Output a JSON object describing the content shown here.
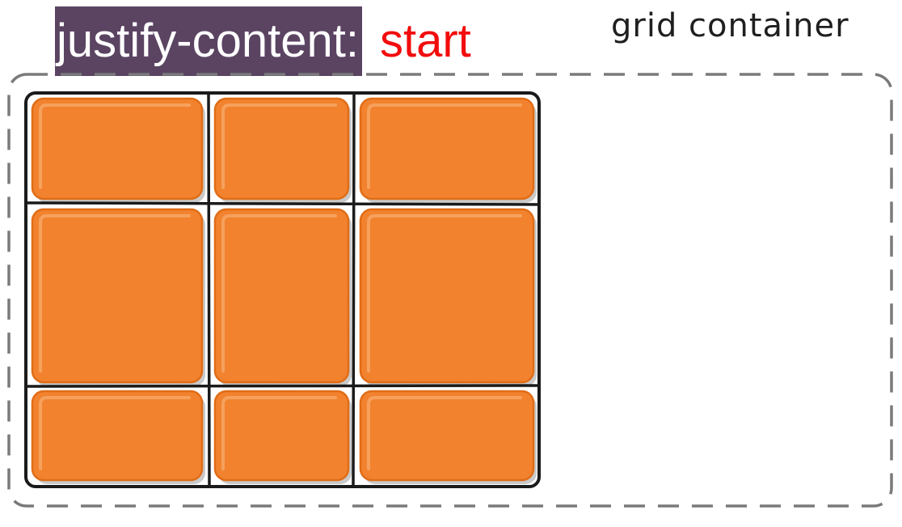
{
  "title": {
    "property": "justify-content:",
    "value": "start"
  },
  "container_label": "grid container",
  "colors": {
    "property_bg": "#5a4462",
    "property_text": "#ffffff",
    "value_text": "#f20d0d",
    "item_fill": "#f2822e",
    "item_highlight": "#f7a765",
    "item_stroke": "#e06d17",
    "grid_stroke": "#1a1a1a",
    "container_dash": "#7a7a7a"
  },
  "grid": {
    "columns": 3,
    "rows": 3,
    "justify_content": "start"
  }
}
